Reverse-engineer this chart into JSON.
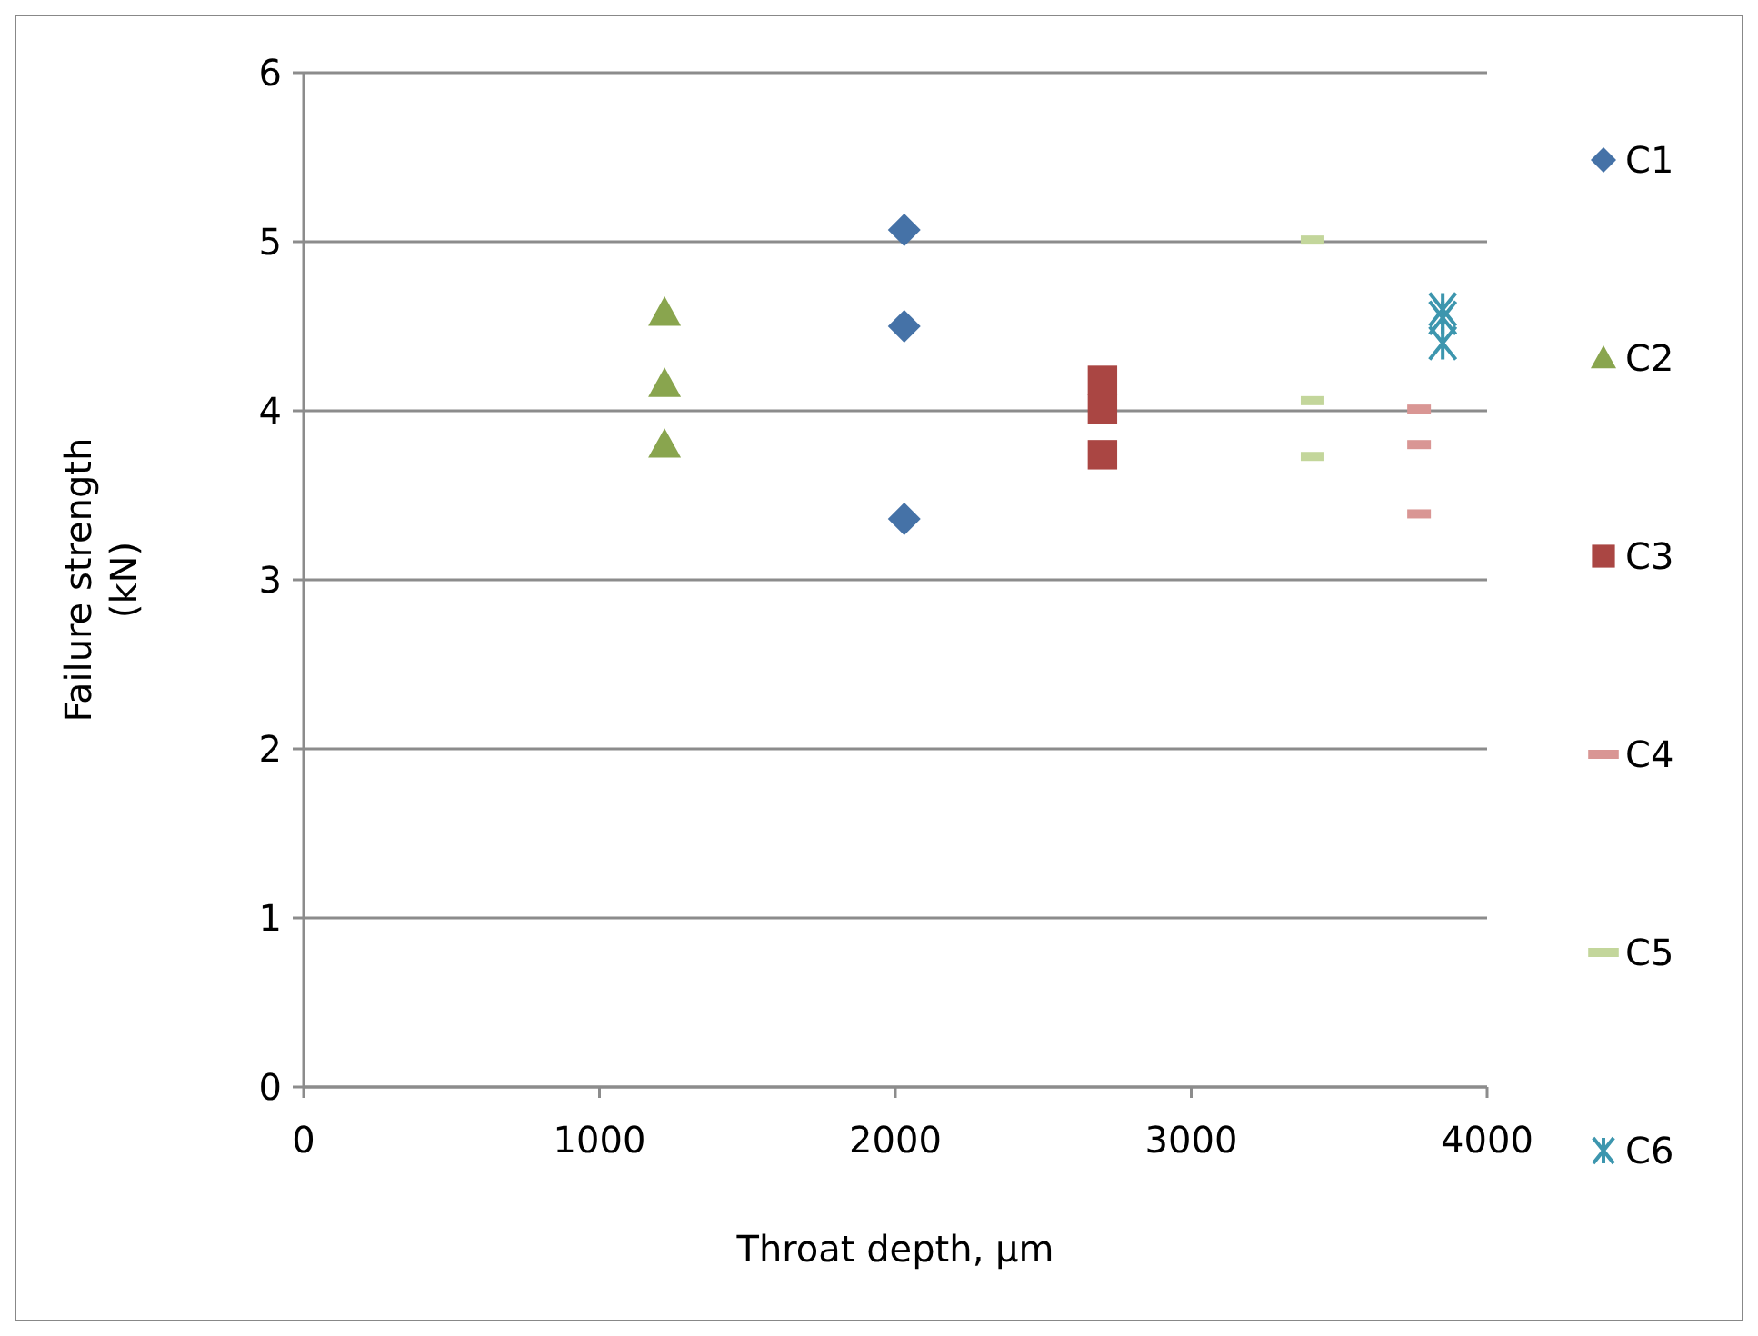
{
  "chart_data": {
    "type": "scatter",
    "xlabel": "Throat depth, µm",
    "ylabel": "Failure strength (kN)",
    "xlim": [
      0,
      4000
    ],
    "xticks": [
      0,
      1000,
      2000,
      3000,
      4000
    ],
    "ylim": [
      0,
      6
    ],
    "yticks": [
      0,
      1,
      2,
      3,
      4,
      5,
      6
    ],
    "grid": "y",
    "legend": "right",
    "series": [
      {
        "name": "C1",
        "color": "#4572a7",
        "marker": "diamond",
        "x": [
          2030,
          2030,
          2030
        ],
        "values": [
          5.07,
          4.5,
          3.36
        ]
      },
      {
        "name": "C2",
        "color": "#89a54e",
        "marker": "triangle",
        "x": [
          1220,
          1220,
          1220
        ],
        "values": [
          4.58,
          4.16,
          3.8
        ]
      },
      {
        "name": "C3",
        "color": "#aa4643",
        "marker": "square",
        "x": [
          2700,
          2700,
          2700
        ],
        "values": [
          4.18,
          4.01,
          3.74
        ]
      },
      {
        "name": "C4",
        "color": "#d99694",
        "x": [
          3770,
          3770,
          3770
        ],
        "values": [
          4.01,
          3.8,
          3.39
        ]
      },
      {
        "name": "C5",
        "color": "#c3d69b",
        "x": [
          3410,
          3410,
          3410
        ],
        "values": [
          5.01,
          4.06,
          3.73
        ]
      },
      {
        "name": "C6",
        "color": "#3d96ae",
        "marker": "cross",
        "x": [
          3850,
          3850,
          3850
        ],
        "values": [
          4.6,
          4.55,
          4.4
        ]
      }
    ]
  }
}
